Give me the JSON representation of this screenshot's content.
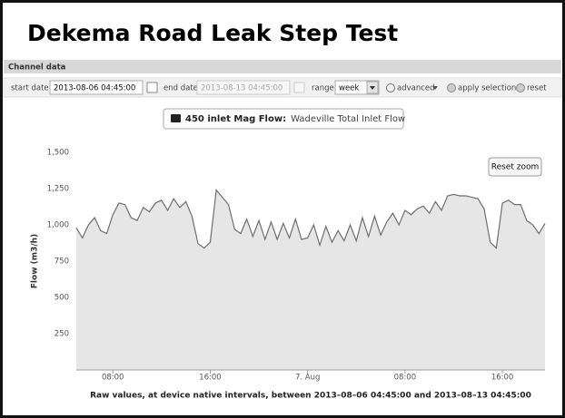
{
  "header": {
    "title": "Dekema Road Leak Step Test"
  },
  "panel": {
    "title": "Channel data"
  },
  "toolbar": {
    "start_label": "start date",
    "start_value": "2013-08-06 04:45:00",
    "end_label": "end date",
    "end_value": "2013-08-13 04:45:00",
    "range_label": "range",
    "range_value": "week",
    "advanced": "advanced",
    "apply": "apply selection",
    "reset": "reset"
  },
  "reset_zoom": "Reset zoom",
  "chart_data": {
    "type": "line",
    "legend_detail": "Wadeville Total Inlet Flow",
    "ylabel": "Flow (m3/h)",
    "xlabel": "Raw values, at device native intervals, between 2013–08–06 04:45:00 and 2013–08–13 04:45:00",
    "categories": [
      null,
      null,
      null,
      null,
      null,
      null,
      "08:00",
      null,
      null,
      null,
      null,
      null,
      null,
      null,
      null,
      null,
      null,
      null,
      null,
      null,
      null,
      null,
      "16:00",
      null,
      null,
      null,
      null,
      null,
      null,
      null,
      null,
      null,
      null,
      null,
      null,
      null,
      null,
      null,
      "7. Aug",
      null,
      null,
      null,
      null,
      null,
      null,
      null,
      null,
      null,
      null,
      null,
      null,
      null,
      null,
      null,
      "08:00",
      null,
      null,
      null,
      null,
      null,
      null,
      null,
      null,
      null,
      null,
      null,
      null,
      null,
      null,
      null,
      "16:00",
      null,
      null,
      null,
      null,
      null,
      null,
      null
    ],
    "series": [
      {
        "name": "450 inlet Mag Flow:",
        "color": "#6e6e6e",
        "values": [
          980,
          910,
          1000,
          1050,
          960,
          940,
          1070,
          1150,
          1140,
          1050,
          1030,
          1120,
          1090,
          1150,
          1170,
          1100,
          1180,
          1120,
          1160,
          1060,
          870,
          840,
          880,
          1240,
          1190,
          1140,
          970,
          940,
          1040,
          920,
          1030,
          900,
          1020,
          900,
          1010,
          910,
          1040,
          900,
          910,
          1000,
          860,
          990,
          880,
          960,
          890,
          1000,
          890,
          1050,
          920,
          1060,
          930,
          1020,
          1080,
          1000,
          1100,
          1070,
          1110,
          1130,
          1080,
          1160,
          1100,
          1200,
          1210,
          1200,
          1200,
          1190,
          1180,
          1110,
          880,
          840,
          1150,
          1170,
          1140,
          1140,
          1030,
          1000,
          940,
          1010
        ]
      }
    ],
    "ylim": [
      0,
      1500
    ],
    "yticks": [
      {
        "value": 250,
        "label": "250"
      },
      {
        "value": 500,
        "label": "500"
      },
      {
        "value": 750,
        "label": "750"
      },
      {
        "value": 1000,
        "label": "1,000"
      },
      {
        "value": 1250,
        "label": "1,250"
      },
      {
        "value": 1500,
        "label": "1,500"
      }
    ],
    "grid": false
  }
}
